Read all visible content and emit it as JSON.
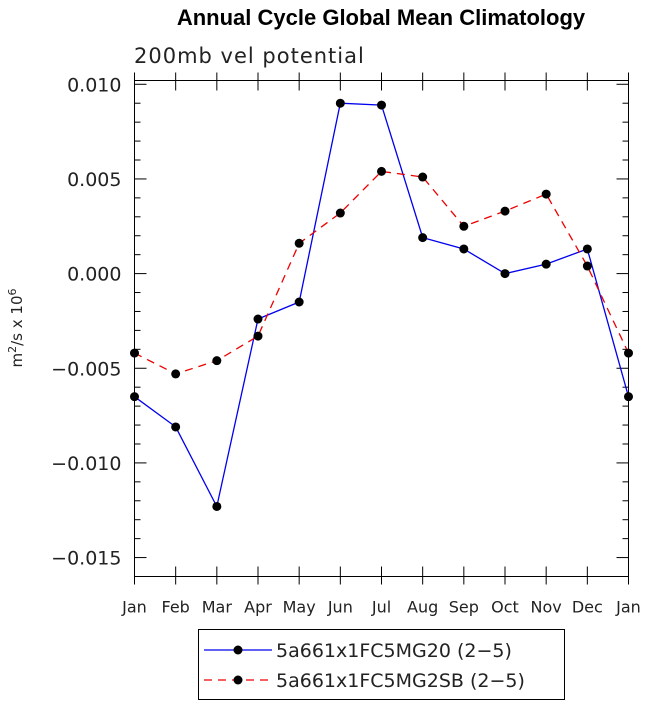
{
  "chart_data": {
    "type": "line",
    "title": "Annual Cycle Global Mean Climatology",
    "subtitle": "200mb vel potential",
    "ylabel": "m²/s x 10⁶",
    "ylabel_base": "m",
    "ylabel_exp": "2",
    "ylabel_mid": "/s x 10",
    "ylabel_exp2": "6",
    "xlabel": "",
    "categories": [
      "Jan",
      "Feb",
      "Mar",
      "Apr",
      "May",
      "Jun",
      "Jul",
      "Aug",
      "Sep",
      "Oct",
      "Nov",
      "Dec",
      "Jan"
    ],
    "ylim": [
      -0.016,
      0.0102
    ],
    "yticks": [
      -0.015,
      -0.01,
      -0.005,
      0.0,
      0.005,
      0.01
    ],
    "ytick_labels": [
      "−0.015",
      "−0.010",
      "−0.005",
      "0.000",
      "0.005",
      "0.010"
    ],
    "grid": false,
    "legend_position": "bottom-center",
    "series": [
      {
        "name": "5a661x1FC5MG20 (2−5)",
        "color": "#0000ee",
        "dash": "solid",
        "values": [
          -0.0065,
          -0.0081,
          -0.0123,
          -0.0024,
          -0.0015,
          0.009,
          0.0089,
          0.0019,
          0.0013,
          0.0,
          0.0005,
          0.0013,
          -0.0065
        ]
      },
      {
        "name": "5a661x1FC5MG2SB (2−5)",
        "color": "#ee0000",
        "dash": "dashed",
        "values": [
          -0.0042,
          -0.0053,
          -0.0046,
          -0.0033,
          0.0016,
          0.0032,
          0.0054,
          0.0051,
          0.0025,
          0.0033,
          0.0042,
          0.0004,
          -0.0042
        ]
      }
    ]
  }
}
